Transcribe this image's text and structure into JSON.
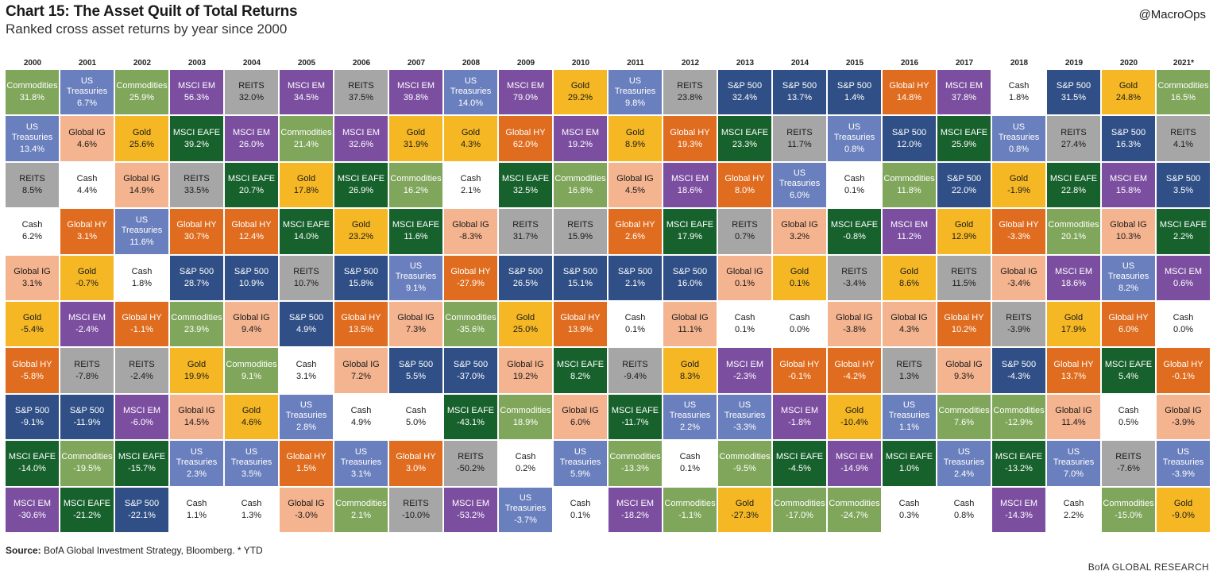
{
  "header": {
    "title": "Chart 15: The Asset Quilt of Total Returns",
    "subtitle": "Ranked cross asset returns by year since 2000",
    "handle": "@MacroOps"
  },
  "footer": {
    "source_label": "Source:",
    "source_text": "BofA Global Investment Strategy, Bloomberg. * YTD",
    "credit": "BofA GLOBAL RESEARCH"
  },
  "colors": {
    "Commodities": "#7fa65a",
    "US Treasuries": "#6a7fbd",
    "MSCI EM": "#7b4ea0",
    "REITS": "#a6a6a6",
    "Gold": "#f5b824",
    "S&P 500": "#2f4f86",
    "Global HY": "#df6c1f",
    "Global IG": "#f4b490",
    "MSCI EAFE": "#17612c",
    "Cash": "#ffffff"
  },
  "chart_data": {
    "type": "table",
    "title": "Chart 15: The Asset Quilt of Total Returns",
    "subtitle": "Ranked cross asset returns by year since 2000",
    "years": [
      "2000",
      "2001",
      "2002",
      "2003",
      "2004",
      "2005",
      "2006",
      "2007",
      "2008",
      "2009",
      "2010",
      "2011",
      "2012",
      "2013",
      "2014",
      "2015",
      "2016",
      "2017",
      "2018",
      "2019",
      "2020",
      "2021*"
    ],
    "columns": [
      [
        [
          "Commodities",
          "31.8%"
        ],
        [
          "US Treasuries",
          "13.4%"
        ],
        [
          "REITS",
          "8.5%"
        ],
        [
          "Cash",
          "6.2%"
        ],
        [
          "Global IG",
          "3.1%"
        ],
        [
          "Gold",
          "-5.4%"
        ],
        [
          "Global HY",
          "-5.8%"
        ],
        [
          "S&P 500",
          "-9.1%"
        ],
        [
          "MSCI EAFE",
          "-14.0%"
        ],
        [
          "MSCI EM",
          "-30.6%"
        ]
      ],
      [
        [
          "US Treasuries",
          "6.7%"
        ],
        [
          "Global IG",
          "4.6%"
        ],
        [
          "Cash",
          "4.4%"
        ],
        [
          "Global HY",
          "3.1%"
        ],
        [
          "Gold",
          "-0.7%"
        ],
        [
          "MSCI EM",
          "-2.4%"
        ],
        [
          "REITS",
          "-7.8%"
        ],
        [
          "S&P 500",
          "-11.9%"
        ],
        [
          "Commodities",
          "-19.5%"
        ],
        [
          "MSCI EAFE",
          "-21.2%"
        ]
      ],
      [
        [
          "Commodities",
          "25.9%"
        ],
        [
          "Gold",
          "25.6%"
        ],
        [
          "Global IG",
          "14.9%"
        ],
        [
          "US Treasuries",
          "11.6%"
        ],
        [
          "Cash",
          "1.8%"
        ],
        [
          "Global HY",
          "-1.1%"
        ],
        [
          "REITS",
          "-2.4%"
        ],
        [
          "MSCI EM",
          "-6.0%"
        ],
        [
          "MSCI EAFE",
          "-15.7%"
        ],
        [
          "S&P 500",
          "-22.1%"
        ]
      ],
      [
        [
          "MSCI EM",
          "56.3%"
        ],
        [
          "MSCI EAFE",
          "39.2%"
        ],
        [
          "REITS",
          "33.5%"
        ],
        [
          "Global HY",
          "30.7%"
        ],
        [
          "S&P 500",
          "28.7%"
        ],
        [
          "Commodities",
          "23.9%"
        ],
        [
          "Gold",
          "19.9%"
        ],
        [
          "Global IG",
          "14.5%"
        ],
        [
          "US Treasuries",
          "2.3%"
        ],
        [
          "Cash",
          "1.1%"
        ]
      ],
      [
        [
          "REITS",
          "32.0%"
        ],
        [
          "MSCI EM",
          "26.0%"
        ],
        [
          "MSCI EAFE",
          "20.7%"
        ],
        [
          "Global HY",
          "12.4%"
        ],
        [
          "S&P 500",
          "10.9%"
        ],
        [
          "Global IG",
          "9.4%"
        ],
        [
          "Commodities",
          "9.1%"
        ],
        [
          "Gold",
          "4.6%"
        ],
        [
          "US Treasuries",
          "3.5%"
        ],
        [
          "Cash",
          "1.3%"
        ]
      ],
      [
        [
          "MSCI EM",
          "34.5%"
        ],
        [
          "Commodities",
          "21.4%"
        ],
        [
          "Gold",
          "17.8%"
        ],
        [
          "MSCI EAFE",
          "14.0%"
        ],
        [
          "REITS",
          "10.7%"
        ],
        [
          "S&P 500",
          "4.9%"
        ],
        [
          "Cash",
          "3.1%"
        ],
        [
          "US Treasuries",
          "2.8%"
        ],
        [
          "Global HY",
          "1.5%"
        ],
        [
          "Global IG",
          "-3.0%"
        ]
      ],
      [
        [
          "REITS",
          "37.5%"
        ],
        [
          "MSCI EM",
          "32.6%"
        ],
        [
          "MSCI EAFE",
          "26.9%"
        ],
        [
          "Gold",
          "23.2%"
        ],
        [
          "S&P 500",
          "15.8%"
        ],
        [
          "Global HY",
          "13.5%"
        ],
        [
          "Global IG",
          "7.2%"
        ],
        [
          "Cash",
          "4.9%"
        ],
        [
          "US Treasuries",
          "3.1%"
        ],
        [
          "Commodities",
          "2.1%"
        ]
      ],
      [
        [
          "MSCI EM",
          "39.8%"
        ],
        [
          "Gold",
          "31.9%"
        ],
        [
          "Commodities",
          "16.2%"
        ],
        [
          "MSCI EAFE",
          "11.6%"
        ],
        [
          "US Treasuries",
          "9.1%"
        ],
        [
          "Global IG",
          "7.3%"
        ],
        [
          "S&P 500",
          "5.5%"
        ],
        [
          "Cash",
          "5.0%"
        ],
        [
          "Global HY",
          "3.0%"
        ],
        [
          "REITS",
          "-10.0%"
        ]
      ],
      [
        [
          "US Treasuries",
          "14.0%"
        ],
        [
          "Gold",
          "4.3%"
        ],
        [
          "Cash",
          "2.1%"
        ],
        [
          "Global IG",
          "-8.3%"
        ],
        [
          "Global HY",
          "-27.9%"
        ],
        [
          "Commodities",
          "-35.6%"
        ],
        [
          "S&P 500",
          "-37.0%"
        ],
        [
          "MSCI EAFE",
          "-43.1%"
        ],
        [
          "REITS",
          "-50.2%"
        ],
        [
          "MSCI EM",
          "-53.2%"
        ]
      ],
      [
        [
          "MSCI EM",
          "79.0%"
        ],
        [
          "Global HY",
          "62.0%"
        ],
        [
          "MSCI EAFE",
          "32.5%"
        ],
        [
          "REITS",
          "31.7%"
        ],
        [
          "S&P 500",
          "26.5%"
        ],
        [
          "Gold",
          "25.0%"
        ],
        [
          "Global IG",
          "19.2%"
        ],
        [
          "Commodities",
          "18.9%"
        ],
        [
          "Cash",
          "0.2%"
        ],
        [
          "US Treasuries",
          "-3.7%"
        ]
      ],
      [
        [
          "Gold",
          "29.2%"
        ],
        [
          "MSCI EM",
          "19.2%"
        ],
        [
          "Commodities",
          "16.8%"
        ],
        [
          "REITS",
          "15.9%"
        ],
        [
          "S&P 500",
          "15.1%"
        ],
        [
          "Global HY",
          "13.9%"
        ],
        [
          "MSCI EAFE",
          "8.2%"
        ],
        [
          "Global IG",
          "6.0%"
        ],
        [
          "US Treasuries",
          "5.9%"
        ],
        [
          "Cash",
          "0.1%"
        ]
      ],
      [
        [
          "US Treasuries",
          "9.8%"
        ],
        [
          "Gold",
          "8.9%"
        ],
        [
          "Global IG",
          "4.5%"
        ],
        [
          "Global HY",
          "2.6%"
        ],
        [
          "S&P 500",
          "2.1%"
        ],
        [
          "Cash",
          "0.1%"
        ],
        [
          "REITS",
          "-9.4%"
        ],
        [
          "MSCI EAFE",
          "-11.7%"
        ],
        [
          "Commodities",
          "-13.3%"
        ],
        [
          "MSCI EM",
          "-18.2%"
        ]
      ],
      [
        [
          "REITS",
          "23.8%"
        ],
        [
          "Global HY",
          "19.3%"
        ],
        [
          "MSCI EM",
          "18.6%"
        ],
        [
          "MSCI EAFE",
          "17.9%"
        ],
        [
          "S&P 500",
          "16.0%"
        ],
        [
          "Global IG",
          "11.1%"
        ],
        [
          "Gold",
          "8.3%"
        ],
        [
          "US Treasuries",
          "2.2%"
        ],
        [
          "Cash",
          "0.1%"
        ],
        [
          "Commodities",
          "-1.1%"
        ]
      ],
      [
        [
          "S&P 500",
          "32.4%"
        ],
        [
          "MSCI EAFE",
          "23.3%"
        ],
        [
          "Global HY",
          "8.0%"
        ],
        [
          "REITS",
          "0.7%"
        ],
        [
          "Global IG",
          "0.1%"
        ],
        [
          "Cash",
          "0.1%"
        ],
        [
          "MSCI EM",
          "-2.3%"
        ],
        [
          "US Treasuries",
          "-3.3%"
        ],
        [
          "Commodities",
          "-9.5%"
        ],
        [
          "Gold",
          "-27.3%"
        ]
      ],
      [
        [
          "S&P 500",
          "13.7%"
        ],
        [
          "REITS",
          "11.7%"
        ],
        [
          "US Treasuries",
          "6.0%"
        ],
        [
          "Global IG",
          "3.2%"
        ],
        [
          "Gold",
          "0.1%"
        ],
        [
          "Cash",
          "0.0%"
        ],
        [
          "Global HY",
          "-0.1%"
        ],
        [
          "MSCI EM",
          "-1.8%"
        ],
        [
          "MSCI EAFE",
          "-4.5%"
        ],
        [
          "Commodities",
          "-17.0%"
        ]
      ],
      [
        [
          "S&P 500",
          "1.4%"
        ],
        [
          "US Treasuries",
          "0.8%"
        ],
        [
          "Cash",
          "0.1%"
        ],
        [
          "MSCI EAFE",
          "-0.8%"
        ],
        [
          "REITS",
          "-3.4%"
        ],
        [
          "Global IG",
          "-3.8%"
        ],
        [
          "Global HY",
          "-4.2%"
        ],
        [
          "Gold",
          "-10.4%"
        ],
        [
          "MSCI EM",
          "-14.9%"
        ],
        [
          "Commodities",
          "-24.7%"
        ]
      ],
      [
        [
          "Global HY",
          "14.8%"
        ],
        [
          "S&P 500",
          "12.0%"
        ],
        [
          "Commodities",
          "11.8%"
        ],
        [
          "MSCI EM",
          "11.2%"
        ],
        [
          "Gold",
          "8.6%"
        ],
        [
          "Global IG",
          "4.3%"
        ],
        [
          "REITS",
          "1.3%"
        ],
        [
          "US Treasuries",
          "1.1%"
        ],
        [
          "MSCI EAFE",
          "1.0%"
        ],
        [
          "Cash",
          "0.3%"
        ]
      ],
      [
        [
          "MSCI EM",
          "37.8%"
        ],
        [
          "MSCI EAFE",
          "25.9%"
        ],
        [
          "S&P 500",
          "22.0%"
        ],
        [
          "Gold",
          "12.9%"
        ],
        [
          "REITS",
          "11.5%"
        ],
        [
          "Global HY",
          "10.2%"
        ],
        [
          "Global IG",
          "9.3%"
        ],
        [
          "Commodities",
          "7.6%"
        ],
        [
          "US Treasuries",
          "2.4%"
        ],
        [
          "Cash",
          "0.8%"
        ]
      ],
      [
        [
          "Cash",
          "1.8%"
        ],
        [
          "US Treasuries",
          "0.8%"
        ],
        [
          "Gold",
          "-1.9%"
        ],
        [
          "Global HY",
          "-3.3%"
        ],
        [
          "Global IG",
          "-3.4%"
        ],
        [
          "REITS",
          "-3.9%"
        ],
        [
          "S&P 500",
          "-4.3%"
        ],
        [
          "Commodities",
          "-12.9%"
        ],
        [
          "MSCI EAFE",
          "-13.2%"
        ],
        [
          "MSCI EM",
          "-14.3%"
        ]
      ],
      [
        [
          "S&P 500",
          "31.5%"
        ],
        [
          "REITS",
          "27.4%"
        ],
        [
          "MSCI EAFE",
          "22.8%"
        ],
        [
          "Commodities",
          "20.1%"
        ],
        [
          "MSCI EM",
          "18.6%"
        ],
        [
          "Gold",
          "17.9%"
        ],
        [
          "Global HY",
          "13.7%"
        ],
        [
          "Global IG",
          "11.4%"
        ],
        [
          "US Treasuries",
          "7.0%"
        ],
        [
          "Cash",
          "2.2%"
        ]
      ],
      [
        [
          "Gold",
          "24.8%"
        ],
        [
          "S&P 500",
          "16.3%"
        ],
        [
          "MSCI EM",
          "15.8%"
        ],
        [
          "Global IG",
          "10.3%"
        ],
        [
          "US Treasuries",
          "8.2%"
        ],
        [
          "Global HY",
          "6.0%"
        ],
        [
          "MSCI EAFE",
          "5.4%"
        ],
        [
          "Cash",
          "0.5%"
        ],
        [
          "REITS",
          "-7.6%"
        ],
        [
          "Commodities",
          "-15.0%"
        ]
      ],
      [
        [
          "Commodities",
          "16.5%"
        ],
        [
          "REITS",
          "4.1%"
        ],
        [
          "S&P 500",
          "3.5%"
        ],
        [
          "MSCI EAFE",
          "2.2%"
        ],
        [
          "MSCI EM",
          "0.6%"
        ],
        [
          "Cash",
          "0.0%"
        ],
        [
          "Global HY",
          "-0.1%"
        ],
        [
          "Global IG",
          "-3.9%"
        ],
        [
          "US Treasuries",
          "-3.9%"
        ],
        [
          "Gold",
          "-9.0%"
        ]
      ]
    ]
  }
}
